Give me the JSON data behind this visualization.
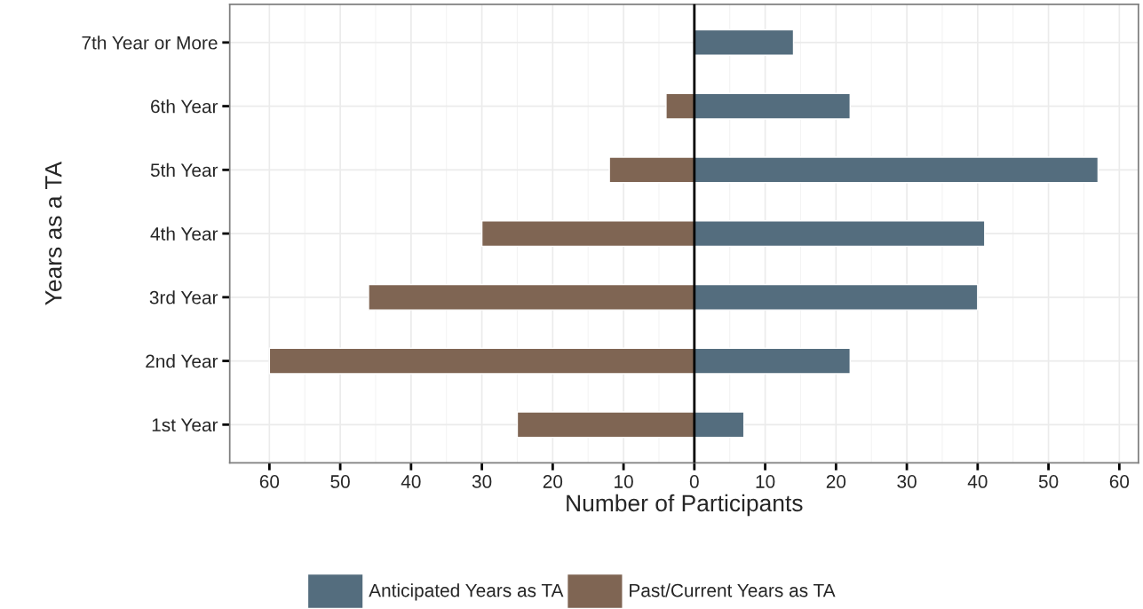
{
  "chart_data": {
    "type": "bar",
    "orientation": "horizontal",
    "xlabel": "Number of Participants",
    "ylabel": "Years as a TA",
    "categories": [
      "7th Year or More",
      "6th Year",
      "5th Year",
      "4th Year",
      "3rd Year",
      "2nd Year",
      "1st Year"
    ],
    "series": [
      {
        "name": "Anticipated Years as TA",
        "color": "#546d7e",
        "values": [
          14,
          22,
          57,
          41,
          40,
          22,
          7
        ]
      },
      {
        "name": "Past/Current Years as TA",
        "color": "#7f6553",
        "values": [
          null,
          -4,
          -12,
          -30,
          -46,
          -60,
          -25
        ]
      }
    ],
    "xlim": [
      -65.6,
      62.7
    ],
    "xticks": [
      {
        "value": -60,
        "label": "60"
      },
      {
        "value": -50,
        "label": "50"
      },
      {
        "value": -40,
        "label": "40"
      },
      {
        "value": -30,
        "label": "30"
      },
      {
        "value": -20,
        "label": "20"
      },
      {
        "value": -10,
        "label": "10"
      },
      0,
      10,
      20,
      30,
      40,
      50,
      60
    ],
    "ref_lines": [
      {
        "axis": "x",
        "value": 0,
        "color": "#000000"
      }
    ],
    "grid": true,
    "legend": "bottom",
    "stacked": true
  }
}
